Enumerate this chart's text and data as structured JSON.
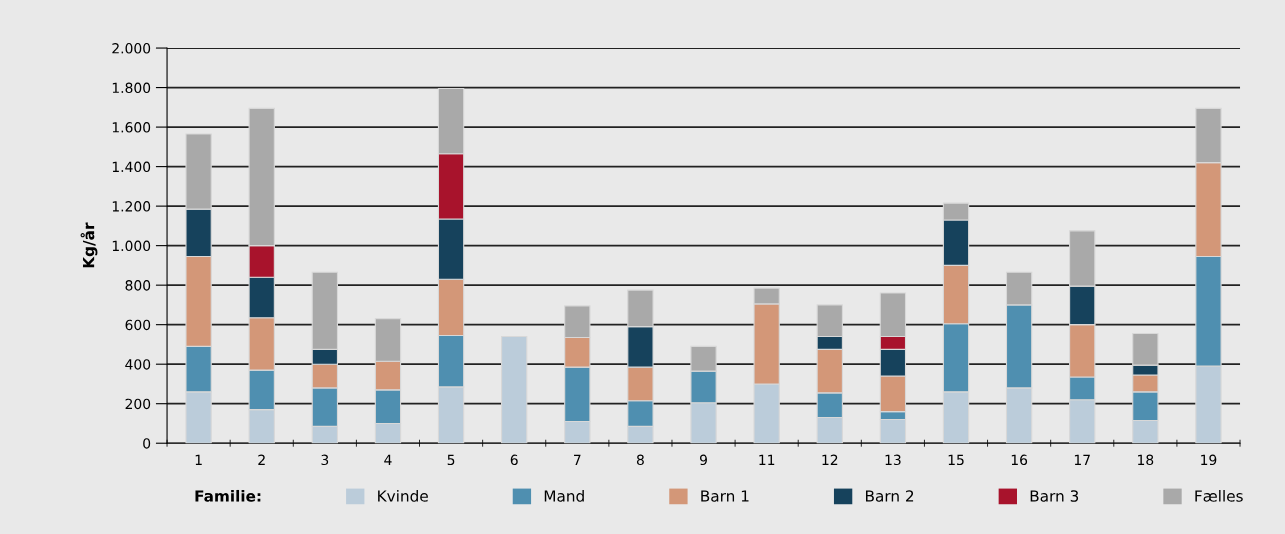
{
  "chart_data": {
    "type": "bar",
    "stacked": true,
    "ylabel": "Kg/år",
    "legend_title": "Familie:",
    "legend": "bottom",
    "grid": "y",
    "categories": [
      "1",
      "2",
      "3",
      "4",
      "5",
      "6",
      "7",
      "8",
      "9",
      "11",
      "12",
      "13",
      "15",
      "16",
      "17",
      "18",
      "19"
    ],
    "ylim": [
      0,
      2000
    ],
    "yticks": [
      0,
      {
        "value": 200,
        "label": "200"
      },
      {
        "value": 400,
        "label": "400"
      },
      {
        "value": 600,
        "label": "600"
      },
      {
        "value": 800,
        "label": "800"
      },
      {
        "value": 1000,
        "label": "1.000"
      },
      {
        "value": 1200,
        "label": "1.200"
      },
      {
        "value": 1400,
        "label": "1.400"
      },
      {
        "value": 1600,
        "label": "1.600"
      },
      {
        "value": 1800,
        "label": "1.800"
      },
      {
        "value": 2000,
        "label": "2.000"
      }
    ],
    "series": [
      {
        "name": "Kvinde",
        "color": "#bbccda",
        "values": [
          260,
          170,
          85,
          100,
          285,
          540,
          110,
          85,
          205,
          300,
          130,
          120,
          260,
          280,
          220,
          115,
          390
        ]
      },
      {
        "name": "Mand",
        "color": "#4f8fb0",
        "values": [
          230,
          200,
          195,
          170,
          260,
          null,
          275,
          130,
          160,
          null,
          125,
          40,
          345,
          420,
          115,
          145,
          555
        ]
      },
      {
        "name": "Barn 1",
        "color": "#d39778",
        "values": [
          455,
          265,
          120,
          145,
          285,
          null,
          150,
          170,
          null,
          405,
          220,
          180,
          295,
          null,
          265,
          85,
          475
        ]
      },
      {
        "name": "Barn 2",
        "color": "#16425c",
        "values": [
          240,
          205,
          75,
          null,
          305,
          null,
          null,
          205,
          null,
          null,
          65,
          135,
          230,
          null,
          195,
          50,
          null
        ]
      },
      {
        "name": "Barn 3",
        "color": "#a8132c",
        "values": [
          null,
          160,
          null,
          null,
          330,
          null,
          null,
          null,
          null,
          null,
          null,
          65,
          null,
          null,
          null,
          null,
          null
        ]
      },
      {
        "name": "Fælles",
        "color": "#a9a9a9",
        "values": [
          380,
          695,
          390,
          215,
          330,
          null,
          160,
          185,
          125,
          80,
          160,
          220,
          85,
          165,
          280,
          160,
          275
        ]
      }
    ]
  }
}
